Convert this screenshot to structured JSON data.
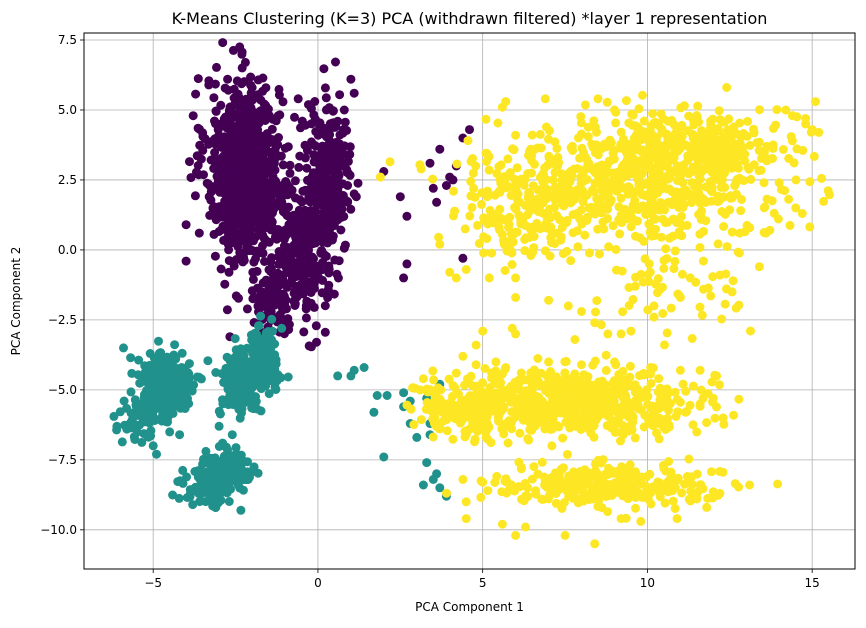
{
  "chart_data": {
    "type": "scatter",
    "title": "K-Means Clustering (K=3) PCA (withdrawn filtered) *layer 1 representation",
    "xlabel": "PCA Component 1",
    "ylabel": "PCA Component 2",
    "xlim": [
      -7.1,
      16.3
    ],
    "ylim": [
      -11.4,
      7.75
    ],
    "xticks": [
      -5,
      0,
      5,
      10,
      15
    ],
    "xtick_labels": [
      "−5",
      "0",
      "5",
      "10",
      "15"
    ],
    "yticks": [
      -10.0,
      -7.5,
      -5.0,
      -2.5,
      0.0,
      2.5,
      5.0,
      7.5
    ],
    "ytick_labels": [
      "−10.0",
      "−7.5",
      "−5.0",
      "−2.5",
      "0.0",
      "2.5",
      "5.0",
      "7.5"
    ],
    "grid": true,
    "legend": "none",
    "series": [
      {
        "color": "#440154",
        "regions": [
          {
            "cx": -2.3,
            "cy": 3.2,
            "sx": 0.55,
            "sy": 1.5,
            "n": 600
          },
          {
            "cx": -1.9,
            "cy": 2.0,
            "sx": 0.6,
            "sy": 1.3,
            "n": 300
          },
          {
            "cx": -0.4,
            "cy": -0.2,
            "sx": 0.35,
            "sy": 1.2,
            "n": 250
          },
          {
            "cx": 0.3,
            "cy": 2.4,
            "sx": 0.35,
            "sy": 1.3,
            "n": 300
          },
          {
            "cx": -1.3,
            "cy": -1.7,
            "sx": 0.35,
            "sy": 0.5,
            "n": 90
          }
        ],
        "points": [
          [
            -4.0,
            0.9
          ],
          [
            -4.0,
            -0.4
          ],
          [
            -3.6,
            0.6
          ],
          [
            -2.7,
            -0.8
          ],
          [
            1.0,
            6.1
          ],
          [
            1.1,
            5.6
          ],
          [
            0.6,
            4.6
          ],
          [
            0.8,
            5.0
          ],
          [
            0.9,
            2.3
          ],
          [
            2.5,
            1.9
          ],
          [
            2.7,
            1.2
          ],
          [
            2.7,
            -0.5
          ],
          [
            2.6,
            -1.0
          ],
          [
            2.0,
            2.8
          ],
          [
            3.4,
            3.1
          ],
          [
            3.5,
            2.2
          ],
          [
            3.6,
            1.7
          ],
          [
            3.7,
            3.6
          ],
          [
            3.9,
            2.3
          ],
          [
            4.0,
            2.6
          ],
          [
            4.4,
            4.0
          ],
          [
            4.2,
            3.0
          ],
          [
            4.1,
            2.5
          ],
          [
            4.6,
            4.3
          ],
          [
            -0.6,
            5.4
          ],
          [
            -1.2,
            4.8
          ],
          [
            1.1,
            2.0
          ],
          [
            0.9,
            1.7
          ],
          [
            0.5,
            1.5
          ],
          [
            -3.3,
            1.9
          ],
          [
            -2.2,
            6.7
          ],
          [
            4.4,
            -0.3
          ]
        ]
      },
      {
        "color": "#21918c",
        "regions": [
          {
            "cx": -4.6,
            "cy": -4.8,
            "sx": 0.4,
            "sy": 0.6,
            "n": 260
          },
          {
            "cx": -2.3,
            "cy": -4.8,
            "sx": 0.35,
            "sy": 0.6,
            "n": 160
          },
          {
            "cx": -1.7,
            "cy": -3.9,
            "sx": 0.3,
            "sy": 0.55,
            "n": 140
          },
          {
            "cx": -3.2,
            "cy": -8.3,
            "sx": 0.4,
            "sy": 0.45,
            "n": 130
          },
          {
            "cx": -2.5,
            "cy": -7.8,
            "sx": 0.3,
            "sy": 0.35,
            "n": 90
          },
          {
            "cx": -5.3,
            "cy": -6.0,
            "sx": 0.35,
            "sy": 0.4,
            "n": 60
          }
        ],
        "points": [
          [
            -6.1,
            -6.3
          ],
          [
            -5.8,
            -6.4
          ],
          [
            -5.9,
            -3.5
          ],
          [
            -5.0,
            -7.0
          ],
          [
            -4.9,
            -7.3
          ],
          [
            -4.5,
            -6.5
          ],
          [
            -3.8,
            -9.1
          ],
          [
            -3.4,
            -7.2
          ],
          [
            -3.0,
            -6.3
          ],
          [
            -2.6,
            -6.6
          ],
          [
            -4.2,
            -6.6
          ],
          [
            -1.1,
            -2.8
          ],
          [
            0.6,
            -4.5
          ],
          [
            1.0,
            -4.5
          ],
          [
            1.1,
            -4.3
          ],
          [
            1.4,
            -4.2
          ],
          [
            1.8,
            -5.2
          ],
          [
            1.7,
            -5.8
          ],
          [
            2.1,
            -5.2
          ],
          [
            2.0,
            -7.4
          ],
          [
            2.6,
            -5.1
          ],
          [
            2.8,
            -5.4
          ],
          [
            3.3,
            -5.3
          ],
          [
            3.6,
            -5.3
          ],
          [
            3.4,
            -5.0
          ],
          [
            3.5,
            -5.7
          ],
          [
            3.7,
            -4.8
          ],
          [
            3.2,
            -8.4
          ],
          [
            3.3,
            -7.6
          ],
          [
            3.6,
            -8.0
          ],
          [
            3.4,
            -6.2
          ],
          [
            3.4,
            -6.6
          ],
          [
            3.0,
            -6.7
          ],
          [
            2.6,
            -5.6
          ],
          [
            2.8,
            -6.2
          ],
          [
            3.5,
            -8.2
          ],
          [
            3.9,
            -8.8
          ],
          [
            3.7,
            -8.5
          ]
        ]
      },
      {
        "color": "#fde725",
        "regions": [
          {
            "cx": 9.5,
            "cy": 2.5,
            "sx": 2.3,
            "sy": 1.1,
            "n": 650
          },
          {
            "cx": 11.2,
            "cy": 3.7,
            "sx": 1.1,
            "sy": 0.6,
            "n": 250
          },
          {
            "cx": 6.3,
            "cy": 1.2,
            "sx": 0.9,
            "sy": 0.8,
            "n": 120
          },
          {
            "cx": 8.0,
            "cy": -5.4,
            "sx": 1.8,
            "sy": 0.55,
            "n": 550
          },
          {
            "cx": 4.5,
            "cy": -5.7,
            "sx": 0.8,
            "sy": 0.5,
            "n": 160
          },
          {
            "cx": 8.7,
            "cy": -8.4,
            "sx": 1.7,
            "sy": 0.35,
            "n": 280
          },
          {
            "cx": 10.4,
            "cy": -1.0,
            "sx": 1.3,
            "sy": 1.0,
            "n": 60
          }
        ],
        "points": [
          [
            3.7,
            0.2
          ],
          [
            4.0,
            -0.8
          ],
          [
            4.5,
            -0.7
          ],
          [
            4.2,
            -1.0
          ],
          [
            5.2,
            -1.0
          ],
          [
            6.0,
            -1.0
          ],
          [
            6.0,
            -1.7
          ],
          [
            6.0,
            -3.0
          ],
          [
            7.0,
            -1.8
          ],
          [
            7.6,
            -2.0
          ],
          [
            7.8,
            -3.2
          ],
          [
            8.0,
            -2.2
          ],
          [
            8.4,
            -2.6
          ],
          [
            8.8,
            -3.0
          ],
          [
            9.2,
            -3.0
          ],
          [
            9.5,
            -2.9
          ],
          [
            10.2,
            -2.0
          ],
          [
            10.2,
            -2.4
          ],
          [
            11.0,
            -1.7
          ],
          [
            11.3,
            -1.0
          ],
          [
            11.7,
            -0.4
          ],
          [
            12.2,
            -0.9
          ],
          [
            12.6,
            -1.1
          ],
          [
            13.4,
            -0.6
          ],
          [
            13.6,
            0.6
          ],
          [
            12.8,
            0.6
          ],
          [
            14.5,
            1.5
          ],
          [
            14.7,
            1.3
          ],
          [
            14.0,
            2.4
          ],
          [
            14.4,
            3.9
          ],
          [
            14.8,
            4.5
          ],
          [
            15.0,
            4.3
          ],
          [
            15.2,
            4.2
          ],
          [
            15.1,
            5.3
          ],
          [
            14.2,
            5.0
          ],
          [
            14.4,
            4.8
          ],
          [
            5.6,
            5.1
          ],
          [
            5.7,
            5.3
          ],
          [
            6.0,
            4.1
          ],
          [
            6.9,
            5.4
          ],
          [
            8.5,
            5.4
          ],
          [
            9.0,
            5.0
          ],
          [
            5.9,
            -2.8
          ],
          [
            5.0,
            -2.9
          ],
          [
            4.8,
            -3.4
          ],
          [
            4.4,
            -3.8
          ],
          [
            4.8,
            -4.1
          ],
          [
            5.7,
            -4.2
          ],
          [
            7.0,
            -4.0
          ],
          [
            8.0,
            -4.1
          ],
          [
            9.0,
            -4.0
          ],
          [
            10.1,
            -4.2
          ],
          [
            11.0,
            -4.3
          ],
          [
            11.6,
            -4.3
          ],
          [
            12.1,
            -4.5
          ],
          [
            12.0,
            -5.3
          ],
          [
            11.6,
            -5.5
          ],
          [
            12.3,
            -6.0
          ],
          [
            11.5,
            -6.5
          ],
          [
            4.4,
            -8.2
          ],
          [
            4.5,
            -9.0
          ],
          [
            5.0,
            -8.3
          ],
          [
            4.5,
            -9.6
          ],
          [
            5.6,
            -9.8
          ],
          [
            6.3,
            -9.9
          ],
          [
            6.0,
            -10.2
          ],
          [
            7.5,
            -10.2
          ],
          [
            8.4,
            -10.5
          ],
          [
            9.2,
            -9.6
          ],
          [
            9.8,
            -9.7
          ],
          [
            10.9,
            -9.6
          ],
          [
            11.8,
            -9.2
          ],
          [
            13.1,
            -8.4
          ],
          [
            12.2,
            -8.7
          ],
          [
            11.5,
            -8.9
          ],
          [
            3.1,
            -5.0
          ],
          [
            3.2,
            -4.6
          ],
          [
            3.9,
            -6.0
          ],
          [
            4.2,
            -4.4
          ],
          [
            5.4,
            -4.0
          ],
          [
            5.1,
            -6.7
          ],
          [
            4.5,
            -6.6
          ],
          [
            7.1,
            -7.0
          ]
        ]
      }
    ]
  }
}
